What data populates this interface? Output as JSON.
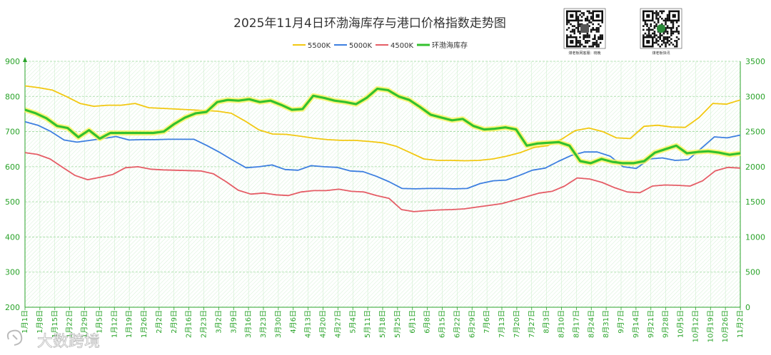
{
  "chart_data": {
    "type": "line",
    "title": "2025年11月4日环渤海库存与港口价格指数走势图",
    "xlabel": "",
    "ylabel": "",
    "ylim": [
      200,
      900
    ],
    "y2lim": [
      0,
      3500
    ],
    "yticks": [
      "200",
      "300",
      "400",
      "500",
      "600",
      "700",
      "800",
      "900"
    ],
    "y2ticks": [
      "0",
      "500",
      "1000",
      "1500",
      "2000",
      "2500",
      "3000",
      "3500"
    ],
    "xticks": [
      "1月1日",
      "1月8日",
      "1月15日",
      "1月22日",
      "1月29日",
      "1月5日",
      "1月12日",
      "1月19日",
      "1月26日",
      "2月2日",
      "2月9日",
      "2月16日",
      "2月23日",
      "3月2日",
      "3月9日",
      "3月16日",
      "3月23日",
      "3月30日",
      "4月6日",
      "4月13日",
      "4月20日",
      "4月27日",
      "5月4日",
      "5月11日",
      "5月18日",
      "5月25日",
      "6月1日",
      "6月8日",
      "6月15日",
      "6月22日",
      "6月29日",
      "7月6日",
      "7月13日",
      "7月20日",
      "7月27日",
      "8月3日",
      "8月10日",
      "8月17日",
      "8月24日",
      "8月31日",
      "9月7日",
      "9月14日",
      "9月21日",
      "9月28日",
      "10月5日",
      "10月12日",
      "10月19日",
      "10月26日",
      "11月2日"
    ],
    "grid": true,
    "legend_position": "top",
    "series": [
      {
        "name": "5500K",
        "axis": "left",
        "color": "#f2c811",
        "width": 1.8,
        "glow": false,
        "values": [
          830,
          825,
          818,
          800,
          780,
          772,
          775,
          775,
          780,
          768,
          766,
          764,
          762,
          760,
          758,
          752,
          730,
          705,
          693,
          692,
          687,
          681,
          677,
          675,
          675,
          672,
          668,
          658,
          640,
          622,
          618,
          618,
          617,
          618,
          622,
          630,
          640,
          655,
          660,
          678,
          703,
          710,
          700,
          682,
          680,
          715,
          718,
          713,
          712,
          740,
          780,
          778,
          790
        ]
      },
      {
        "name": "5000K",
        "axis": "left",
        "color": "#3d7fe0",
        "width": 1.8,
        "glow": false,
        "values": [
          728,
          718,
          700,
          676,
          670,
          675,
          680,
          686,
          676,
          677,
          677,
          678,
          678,
          678,
          660,
          640,
          618,
          597,
          600,
          605,
          592,
          590,
          603,
          600,
          598,
          588,
          586,
          573,
          557,
          538,
          537,
          538,
          538,
          537,
          538,
          552,
          560,
          562,
          575,
          590,
          596,
          615,
          632,
          642,
          642,
          630,
          600,
          595,
          622,
          625,
          618,
          620,
          652,
          685,
          682,
          690
        ]
      },
      {
        "name": "4500K",
        "axis": "left",
        "color": "#e55d66",
        "width": 1.8,
        "glow": false,
        "values": [
          640,
          635,
          622,
          598,
          575,
          563,
          570,
          578,
          597,
          600,
          593,
          591,
          590,
          589,
          588,
          580,
          558,
          533,
          522,
          525,
          520,
          518,
          528,
          532,
          532,
          536,
          530,
          528,
          518,
          510,
          478,
          472,
          475,
          477,
          478,
          480,
          485,
          490,
          495,
          505,
          515,
          525,
          530,
          545,
          568,
          565,
          555,
          540,
          528,
          526,
          545,
          548,
          547,
          545,
          560,
          588,
          598,
          596
        ]
      },
      {
        "name": "环渤海库存",
        "axis": "right",
        "color": "#33c12e",
        "width": 3.2,
        "glow": true,
        "values": [
          2810,
          2760,
          2690,
          2580,
          2550,
          2420,
          2520,
          2400,
          2480,
          2480,
          2480,
          2480,
          2480,
          2500,
          2610,
          2700,
          2760,
          2780,
          2920,
          2950,
          2940,
          2960,
          2920,
          2940,
          2880,
          2810,
          2820,
          3010,
          2980,
          2940,
          2920,
          2890,
          2980,
          3110,
          3090,
          3000,
          2950,
          2850,
          2740,
          2700,
          2660,
          2680,
          2580,
          2530,
          2540,
          2560,
          2530,
          2300,
          2330,
          2340,
          2350,
          2300,
          2080,
          2050,
          2110,
          2070,
          2050,
          2050,
          2080,
          2200,
          2250,
          2300,
          2190,
          2210,
          2220,
          2200,
          2170,
          2190
        ]
      }
    ]
  },
  "decor": {
    "qr_codes": [
      {
        "caption": "煤老板网客服：晓晚",
        "icon": "wechat-qr-code"
      },
      {
        "caption": "煤老板快讯",
        "icon": "app-qr-code"
      }
    ],
    "watermark": {
      "text": "大数跨境",
      "icon": "brand-logo-icon"
    }
  }
}
